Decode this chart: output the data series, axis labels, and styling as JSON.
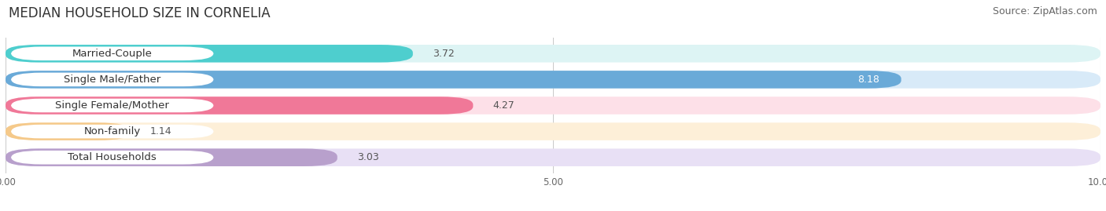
{
  "title": "MEDIAN HOUSEHOLD SIZE IN CORNELIA",
  "source": "Source: ZipAtlas.com",
  "categories": [
    "Married-Couple",
    "Single Male/Father",
    "Single Female/Mother",
    "Non-family",
    "Total Households"
  ],
  "values": [
    3.72,
    8.18,
    4.27,
    1.14,
    3.03
  ],
  "bar_colors": [
    "#4ecece",
    "#6aaad8",
    "#f07898",
    "#f5c98a",
    "#b8a0cc"
  ],
  "bar_bg_colors": [
    "#ddf4f4",
    "#d8eaf8",
    "#fde0e8",
    "#fdefd8",
    "#e8e0f5"
  ],
  "xlim": [
    0,
    10
  ],
  "xtick_labels": [
    "0.00",
    "5.00",
    "10.00"
  ],
  "title_fontsize": 12,
  "source_fontsize": 9,
  "label_fontsize": 9.5,
  "value_fontsize": 9,
  "background_color": "#ffffff"
}
